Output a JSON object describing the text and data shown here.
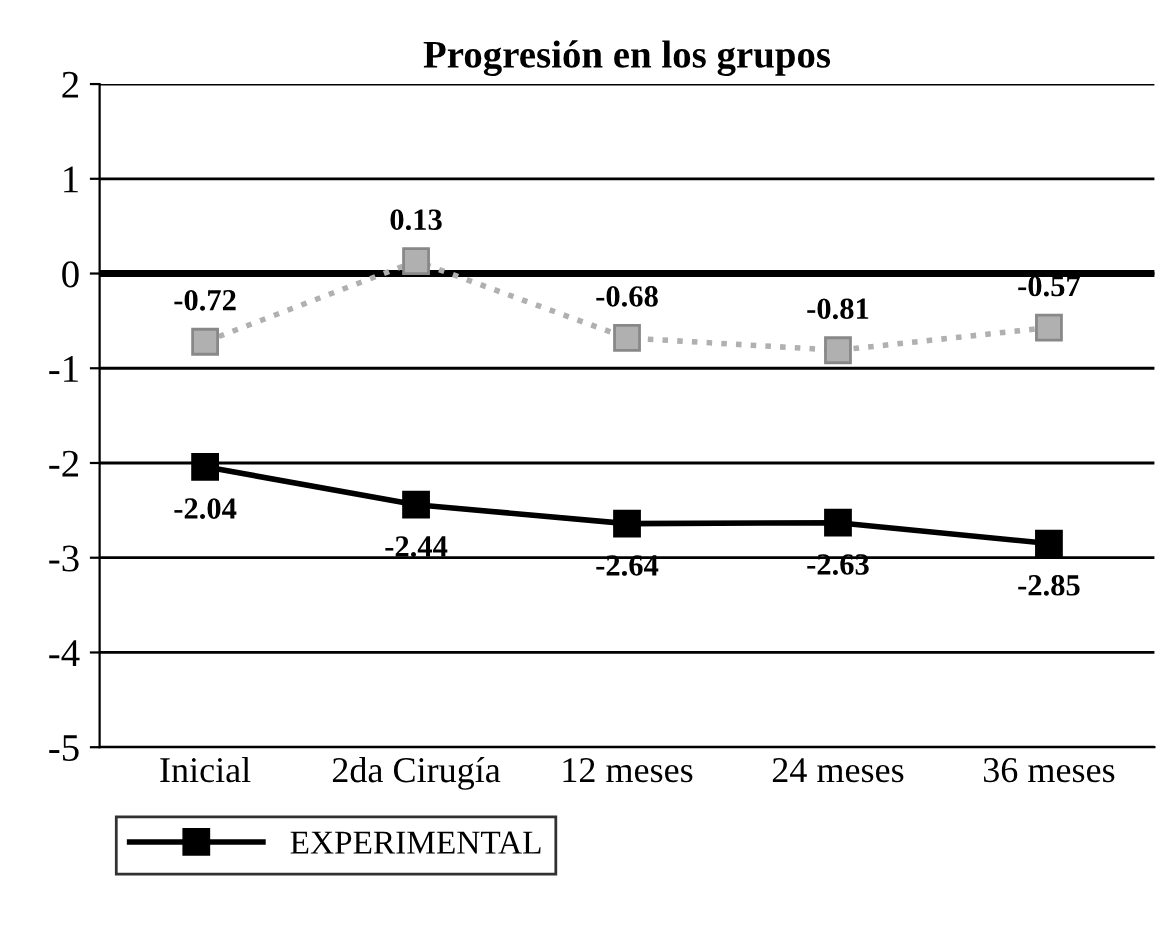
{
  "chart_data": {
    "type": "line",
    "title": "Progresión en los grupos",
    "categories": [
      "Inicial",
      "2da Cirugía",
      "12 meses",
      "24 meses",
      "36 meses"
    ],
    "series": [
      {
        "color": "#b0b0b0",
        "values": [
          -0.72,
          0.13,
          -0.68,
          -0.81,
          -0.57
        ],
        "line_style": "dotted"
      },
      {
        "name": "EXPERIMENTAL",
        "color": "#000000",
        "values": [
          -2.04,
          -2.44,
          -2.64,
          -2.63,
          -2.85
        ],
        "line_style": "solid"
      }
    ],
    "ylim": [
      -5,
      2
    ],
    "yticks": [
      -5,
      -4,
      -3,
      -2,
      -1,
      0,
      1,
      2
    ],
    "ref_lines": [
      {
        "axis": "y",
        "value": 0,
        "color": "#000000"
      }
    ],
    "grid": "y",
    "marker": "square",
    "legend": "bottom",
    "data_labels": true
  }
}
